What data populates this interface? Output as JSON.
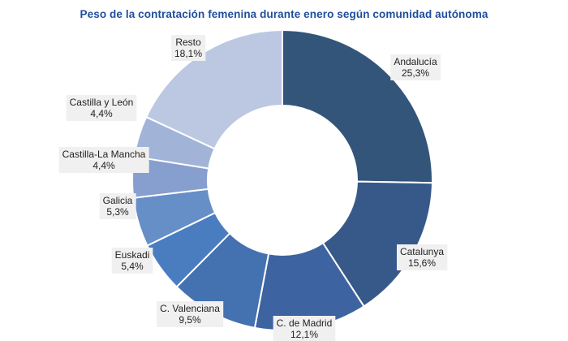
{
  "chart_data": {
    "type": "pie",
    "donut": true,
    "title": "Peso de la contratación femenina durante enero según comunidad autónoma",
    "slices": [
      {
        "name": "Andalucía",
        "value": 25.3,
        "label": "25,3%",
        "color": "#33557a"
      },
      {
        "name": "Catalunya",
        "value": 15.6,
        "label": "15,6%",
        "color": "#37598a"
      },
      {
        "name": "C. de Madrid",
        "value": 12.1,
        "label": "12,1%",
        "color": "#3d64a0"
      },
      {
        "name": "C. Valenciana",
        "value": 9.5,
        "label": "9,5%",
        "color": "#4471b0"
      },
      {
        "name": "Euskadi",
        "value": 5.4,
        "label": "5,4%",
        "color": "#4a7dc0"
      },
      {
        "name": "Galicia",
        "value": 5.3,
        "label": "5,3%",
        "color": "#668ec7"
      },
      {
        "name": "Castilla-La Mancha",
        "value": 4.4,
        "label": "4,4%",
        "color": "#879fce"
      },
      {
        "name": "Castilla y León",
        "value": 4.4,
        "label": "4,4%",
        "color": "#a1b4d8"
      },
      {
        "name": "Resto",
        "value": 18.1,
        "label": "18,1%",
        "color": "#bcc8e2"
      }
    ]
  }
}
